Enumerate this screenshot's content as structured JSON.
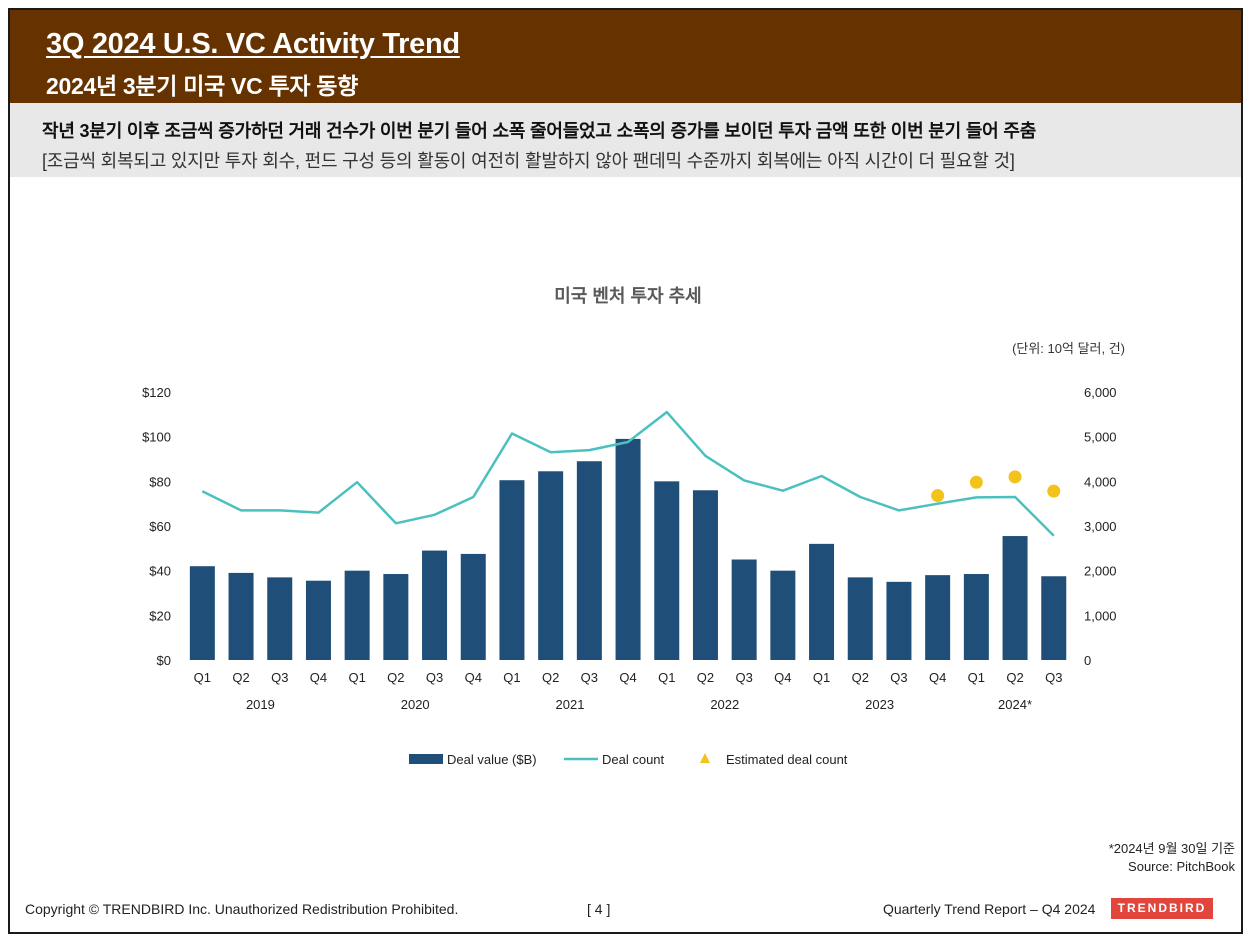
{
  "header": {
    "title_en": "3Q 2024 U.S. VC Activity Trend",
    "title_ko": "2024년 3분기 미국 VC 투자 동향"
  },
  "summary": {
    "line1": "작년 3분기 이후 조금씩 증가하던 거래 건수가 이번 분기 들어 소폭 줄어들었고 소폭의 증가를 보이던 투자 금액 또한 이번 분기 들어 주춤",
    "line2": "[조금씩 회복되고 있지만 투자 회수, 펀드 구성 등의 활동이 여전히 활발하지 않아 팬데믹 수준까지 회복에는 아직 시간이 더 필요할 것]"
  },
  "chart_data": {
    "type": "bar",
    "title": "미국 벤처 투자 추세",
    "unit_note": "(단위: 10억 달러, 건)",
    "categories": [
      "Q1",
      "Q2",
      "Q3",
      "Q4",
      "Q1",
      "Q2",
      "Q3",
      "Q4",
      "Q1",
      "Q2",
      "Q3",
      "Q4",
      "Q1",
      "Q2",
      "Q3",
      "Q4",
      "Q1",
      "Q2",
      "Q3",
      "Q4",
      "Q1",
      "Q2",
      "Q3"
    ],
    "year_groups": [
      {
        "label": "2019",
        "start": 0,
        "count": 4
      },
      {
        "label": "2020",
        "start": 4,
        "count": 4
      },
      {
        "label": "2021",
        "start": 8,
        "count": 4
      },
      {
        "label": "2022",
        "start": 12,
        "count": 4
      },
      {
        "label": "2023",
        "start": 16,
        "count": 4
      },
      {
        "label": "2024*",
        "start": 20,
        "count": 3
      }
    ],
    "left_axis": {
      "ticks": [
        "$0",
        "$20",
        "$40",
        "$60",
        "$80",
        "$100",
        "$120"
      ],
      "range": [
        0,
        120
      ]
    },
    "right_axis": {
      "ticks": [
        "0",
        "1,000",
        "2,000",
        "3,000",
        "4,000",
        "5,000",
        "6,000"
      ],
      "range": [
        0,
        6000
      ]
    },
    "series": [
      {
        "name": "Deal value ($B)",
        "type": "bar",
        "axis": "left",
        "color": "#1f4e79",
        "values": [
          42,
          39,
          37,
          35.5,
          40,
          38.5,
          49,
          47.5,
          80.5,
          84.5,
          89,
          99,
          80,
          76,
          45,
          40,
          52,
          37,
          35,
          38,
          38.5,
          55.5,
          37.5
        ]
      },
      {
        "name": "Deal count",
        "type": "line",
        "axis": "right",
        "color": "#4bc0c0",
        "values": [
          3780,
          3350,
          3350,
          3300,
          3980,
          3060,
          3250,
          3650,
          5070,
          4650,
          4700,
          4880,
          5550,
          4570,
          4020,
          3790,
          4120,
          3650,
          3350,
          3500,
          3640,
          3650,
          2780
        ]
      },
      {
        "name": "Estimated deal count",
        "type": "point",
        "axis": "right",
        "color": "#f2c31a",
        "points": [
          {
            "index": 19,
            "value": 3680
          },
          {
            "index": 20,
            "value": 3980
          },
          {
            "index": 21,
            "value": 4100
          },
          {
            "index": 22,
            "value": 3780
          }
        ]
      }
    ]
  },
  "footnote": {
    "date_note": "*2024년 9월 30일 기준",
    "source": "Source: PitchBook"
  },
  "footer": {
    "copyright": "Copyright © TRENDBIRD Inc. Unauthorized Redistribution Prohibited.",
    "page": "[ 4 ]",
    "report": "Quarterly Trend Report – Q4 2024",
    "logo": "TRENDBIRD"
  }
}
